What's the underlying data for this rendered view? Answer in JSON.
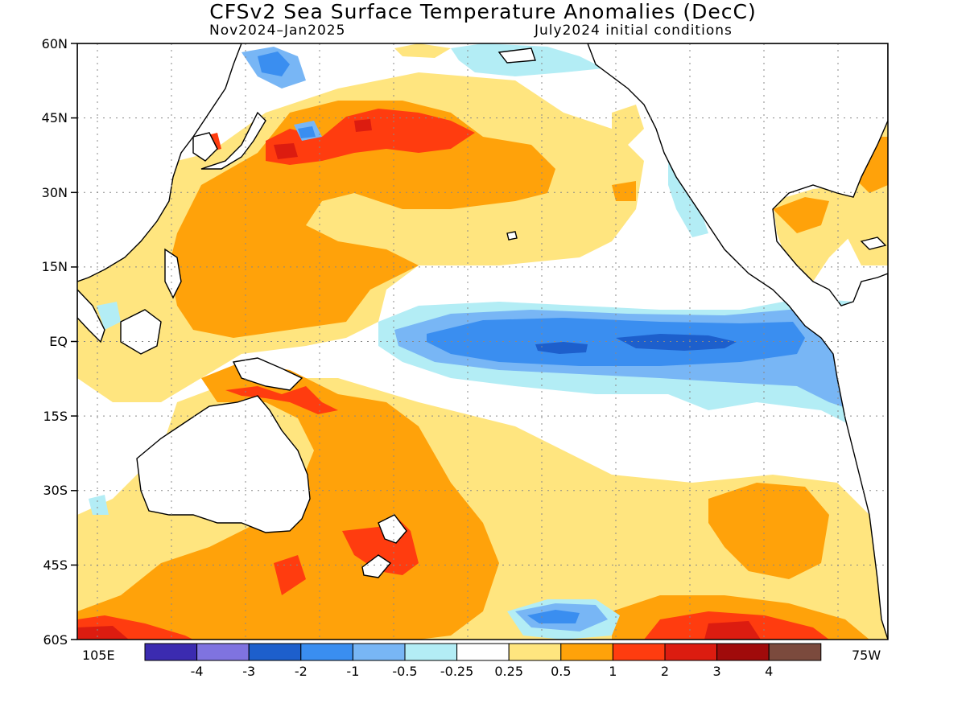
{
  "title": "CFSv2 Sea Surface Temperature Anomalies (DecC)",
  "subtitle_left": "Nov2024–Jan2025",
  "subtitle_right": "July2024 initial conditions",
  "lat_labels": [
    "60N",
    "45N",
    "30N",
    "15N",
    "EQ",
    "15S",
    "30S",
    "45S",
    "60S"
  ],
  "lon_labels": {
    "left": "105E",
    "right": "75W"
  },
  "colorbar": {
    "colors": [
      "#3b2bb0",
      "#7f73e0",
      "#1d5fcc",
      "#3a8ef0",
      "#78b6f5",
      "#b3edf5",
      "#ffffff",
      "#ffe57f",
      "#ffa20a",
      "#ff3c0f",
      "#dc1c10",
      "#a00b0b",
      "#7b4a3d"
    ],
    "labels": [
      "-4",
      "-3",
      "-2",
      "-1",
      "-0.5",
      "-0.25",
      "0.25",
      "0.5",
      "1",
      "2",
      "3",
      "4"
    ]
  },
  "map": {
    "projection": "cylindrical",
    "lat_range": [
      -60,
      60
    ],
    "lon_range": [
      "105E",
      "75W"
    ],
    "gridlines": "dotted"
  }
}
